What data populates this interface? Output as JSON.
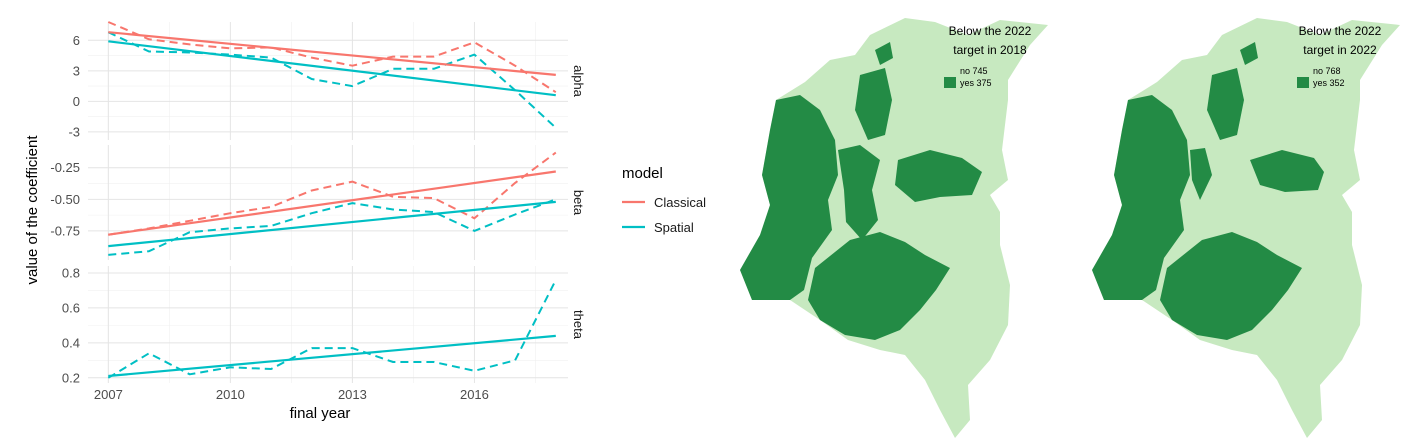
{
  "chart_data": [
    {
      "type": "line",
      "facets": [
        {
          "name": "alpha",
          "ylim": [
            -3.8,
            7.8
          ],
          "yticks": [
            6,
            3,
            0,
            -3
          ],
          "ytick_labels": [
            "6",
            "3",
            "0",
            "-3"
          ],
          "series": [
            {
              "name": "Classical",
              "kind": "observed",
              "x": [
                2007,
                2008,
                2009,
                2010,
                2011,
                2012,
                2013,
                2014,
                2015,
                2016,
                2017,
                2018
              ],
              "y": [
                7.8,
                6.1,
                5.6,
                5.2,
                5.3,
                4.3,
                3.5,
                4.4,
                4.4,
                5.8,
                3.5,
                0.9
              ]
            },
            {
              "name": "Spatial",
              "kind": "observed",
              "x": [
                2007,
                2008,
                2009,
                2010,
                2011,
                2012,
                2013,
                2014,
                2015,
                2016,
                2017,
                2018
              ],
              "y": [
                6.8,
                4.9,
                4.8,
                4.6,
                4.3,
                2.2,
                1.5,
                3.2,
                3.2,
                4.6,
                1.1,
                -2.6
              ]
            },
            {
              "name": "Classical",
              "kind": "trend",
              "x": [
                2007,
                2018
              ],
              "y": [
                6.8,
                2.6
              ]
            },
            {
              "name": "Spatial",
              "kind": "trend",
              "x": [
                2007,
                2018
              ],
              "y": [
                5.9,
                0.6
              ]
            }
          ]
        },
        {
          "name": "beta",
          "ylim": [
            -0.98,
            -0.07
          ],
          "yticks": [
            -0.25,
            -0.5,
            -0.75
          ],
          "ytick_labels": [
            "-0.25",
            "-0.50",
            "-0.75"
          ],
          "series": [
            {
              "name": "Classical",
              "kind": "observed",
              "x": [
                2007,
                2008,
                2009,
                2010,
                2011,
                2012,
                2013,
                2014,
                2015,
                2016,
                2017,
                2018
              ],
              "y": [
                -0.78,
                -0.73,
                -0.67,
                -0.61,
                -0.56,
                -0.43,
                -0.36,
                -0.48,
                -0.49,
                -0.65,
                -0.37,
                -0.13
              ]
            },
            {
              "name": "Spatial",
              "kind": "observed",
              "x": [
                2007,
                2008,
                2009,
                2010,
                2011,
                2012,
                2013,
                2014,
                2015,
                2016,
                2017,
                2018
              ],
              "y": [
                -0.94,
                -0.91,
                -0.76,
                -0.73,
                -0.71,
                -0.61,
                -0.53,
                -0.58,
                -0.6,
                -0.75,
                -0.62,
                -0.5
              ]
            },
            {
              "name": "Classical",
              "kind": "trend",
              "x": [
                2007,
                2018
              ],
              "y": [
                -0.78,
                -0.28
              ]
            },
            {
              "name": "Spatial",
              "kind": "trend",
              "x": [
                2007,
                2018
              ],
              "y": [
                -0.87,
                -0.52
              ]
            }
          ]
        },
        {
          "name": "theta",
          "ylim": [
            0.17,
            0.84
          ],
          "yticks": [
            0.8,
            0.6,
            0.4,
            0.2
          ],
          "ytick_labels": [
            "0.8",
            "0.6",
            "0.4",
            "0.2"
          ],
          "series": [
            {
              "name": "Spatial",
              "kind": "observed",
              "x": [
                2007,
                2008,
                2009,
                2010,
                2011,
                2012,
                2013,
                2014,
                2015,
                2016,
                2017,
                2018
              ],
              "y": [
                0.2,
                0.34,
                0.22,
                0.26,
                0.25,
                0.37,
                0.37,
                0.29,
                0.29,
                0.24,
                0.3,
                0.76
              ]
            },
            {
              "name": "Spatial",
              "kind": "trend",
              "x": [
                2007,
                2018
              ],
              "y": [
                0.21,
                0.44
              ]
            }
          ]
        }
      ],
      "xlim": [
        2006.5,
        2018.3
      ],
      "xticks": [
        2007,
        2010,
        2013,
        2016
      ],
      "xlabel": "final year",
      "ylabel": "value of the coefficient",
      "legend": {
        "title": "model",
        "entries": [
          {
            "label": "Classical",
            "color": "#F8766D"
          },
          {
            "label": "Spatial",
            "color": "#00BFC4"
          }
        ]
      },
      "colors": {
        "Classical": "#F8766D",
        "Spatial": "#00BFC4"
      },
      "grid": true
    },
    {
      "type": "map",
      "legend_title_line1": "Below the 2022",
      "legend_title_line2": "target in 2018",
      "categories": [
        {
          "label": "no 745",
          "color": "#c7e9c0"
        },
        {
          "label": "yes 375",
          "color": "#238b45"
        }
      ]
    },
    {
      "type": "map",
      "legend_title_line1": "Below the 2022",
      "legend_title_line2": "target in 2022",
      "categories": [
        {
          "label": "no 768",
          "color": "#c7e9c0"
        },
        {
          "label": "yes 352",
          "color": "#238b45"
        }
      ]
    }
  ]
}
